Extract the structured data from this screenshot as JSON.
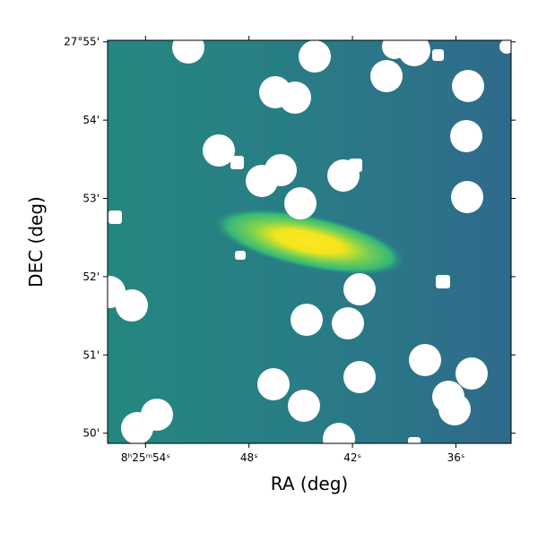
{
  "chart_data": {
    "type": "image",
    "x_label": "RA (deg)",
    "y_label": "DEC (deg)",
    "xlim": [
      56.2,
      32.8
    ],
    "ylim": [
      49.87,
      55.02
    ],
    "xticks": [
      {
        "value": 54,
        "label": "8ʰ25ᵐ54ˢ"
      },
      {
        "value": 48,
        "label": "48ˢ"
      },
      {
        "value": 42,
        "label": "42ˢ"
      },
      {
        "value": 36,
        "label": "36ˢ"
      }
    ],
    "yticks": [
      {
        "value": 50,
        "label": "50'"
      },
      {
        "value": 51,
        "label": "51'"
      },
      {
        "value": 52,
        "label": "52'"
      },
      {
        "value": 53,
        "label": "53'"
      },
      {
        "value": 54,
        "label": "54'"
      },
      {
        "value": 55,
        "label": "27°55'"
      }
    ]
  }
}
